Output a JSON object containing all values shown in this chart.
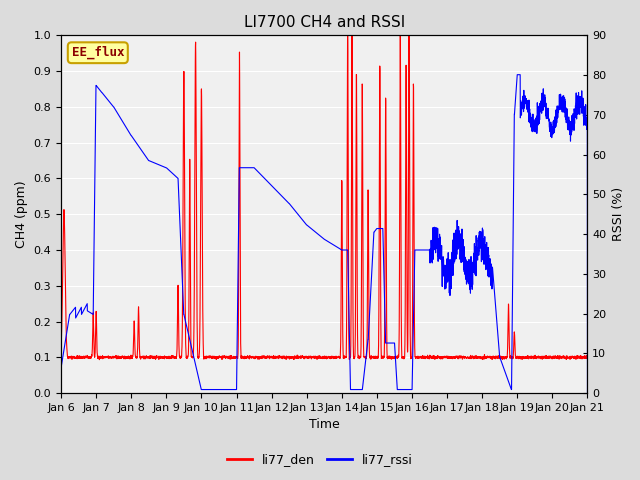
{
  "title": "LI7700 CH4 and RSSI",
  "xlabel": "Time",
  "ylabel_left": "CH4 (ppm)",
  "ylabel_right": "RSSI (%)",
  "left_ylim": [
    0.0,
    1.0
  ],
  "right_ylim": [
    0,
    90
  ],
  "left_yticks": [
    0.0,
    0.1,
    0.2,
    0.3,
    0.4,
    0.5,
    0.6,
    0.7,
    0.8,
    0.9,
    1.0
  ],
  "right_yticks": [
    0,
    10,
    20,
    30,
    40,
    50,
    60,
    70,
    80,
    90
  ],
  "legend_labels": [
    "li77_den",
    "li77_rssi"
  ],
  "legend_colors": [
    "red",
    "blue"
  ],
  "line_width": 0.8,
  "bg_color": "#dcdcdc",
  "plot_bg": "#dcdcdc",
  "inner_bg": "#f0f0f0",
  "annotation_text": "EE_flux",
  "annotation_bg": "#ffffa0",
  "annotation_edge": "#c8a000",
  "annotation_text_color": "#8b0000",
  "title_fontsize": 11,
  "label_fontsize": 9,
  "tick_fontsize": 8,
  "xticklabels": [
    "Jan 6",
    "Jan 7",
    "Jan 8",
    "Jan 9",
    "Jan 10",
    "Jan 11",
    "Jan 12",
    "Jan 13",
    "Jan 14",
    "Jan 15",
    "Jan 16",
    "Jan 17",
    "Jan 18",
    "Jan 19",
    "Jan 20",
    "Jan 21"
  ],
  "xtick_positions": [
    0,
    24,
    48,
    72,
    96,
    120,
    144,
    168,
    192,
    216,
    240,
    264,
    288,
    312,
    336,
    360
  ]
}
